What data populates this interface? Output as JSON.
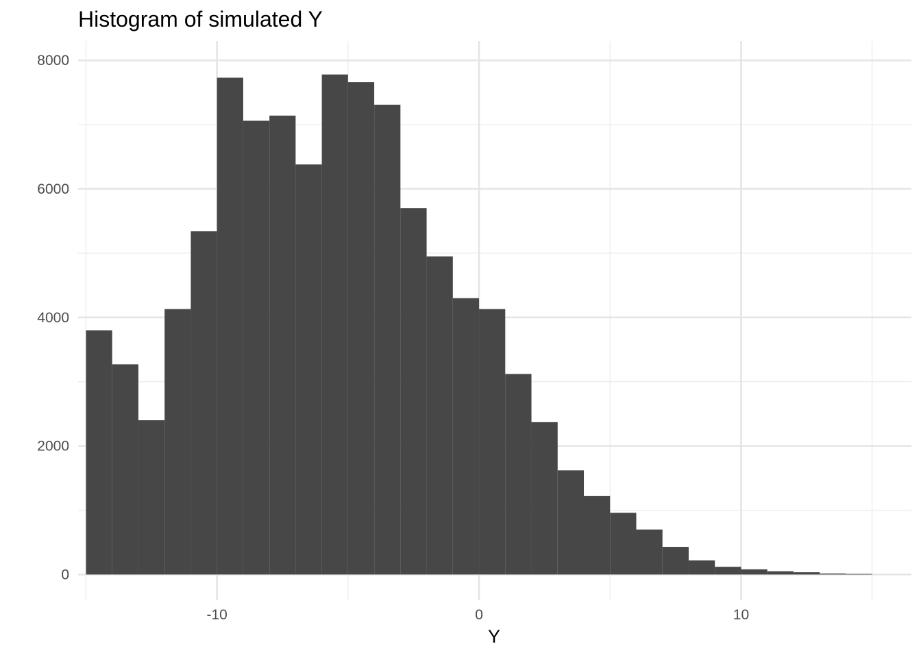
{
  "chart_data": {
    "type": "bar",
    "title": "Histogram of simulated Y",
    "xlabel": "Y",
    "ylabel": "",
    "bin_width": 1,
    "xlim": [
      -15.3,
      16.5
    ],
    "ylim": [
      -400,
      8300
    ],
    "x_ticks": [
      -10,
      0,
      10
    ],
    "x_tick_labels": [
      "-10",
      "0",
      "10"
    ],
    "x_minor_ticks": [
      -15,
      -5,
      5,
      15
    ],
    "y_ticks": [
      0,
      2000,
      4000,
      6000,
      8000
    ],
    "y_tick_labels": [
      "0",
      "2000",
      "4000",
      "6000",
      "8000"
    ],
    "y_minor_ticks": [
      1000,
      3000,
      5000,
      7000
    ],
    "grid": true,
    "legend": "none",
    "bars": [
      {
        "x0": -15,
        "x1": -14,
        "count": 3800
      },
      {
        "x0": -14,
        "x1": -13,
        "count": 3270
      },
      {
        "x0": -13,
        "x1": -12,
        "count": 2400
      },
      {
        "x0": -12,
        "x1": -11,
        "count": 4130
      },
      {
        "x0": -11,
        "x1": -10,
        "count": 5340
      },
      {
        "x0": -10,
        "x1": -9,
        "count": 7730
      },
      {
        "x0": -9,
        "x1": -8,
        "count": 7060
      },
      {
        "x0": -8,
        "x1": -7,
        "count": 7140
      },
      {
        "x0": -7,
        "x1": -6,
        "count": 6380
      },
      {
        "x0": -6,
        "x1": -5,
        "count": 7780
      },
      {
        "x0": -5,
        "x1": -4,
        "count": 7660
      },
      {
        "x0": -4,
        "x1": -3,
        "count": 7310
      },
      {
        "x0": -3,
        "x1": -2,
        "count": 5700
      },
      {
        "x0": -2,
        "x1": -1,
        "count": 4950
      },
      {
        "x0": -1,
        "x1": 0,
        "count": 4300
      },
      {
        "x0": 0,
        "x1": 1,
        "count": 4130
      },
      {
        "x0": 1,
        "x1": 2,
        "count": 3120
      },
      {
        "x0": 2,
        "x1": 3,
        "count": 2370
      },
      {
        "x0": 3,
        "x1": 4,
        "count": 1620
      },
      {
        "x0": 4,
        "x1": 5,
        "count": 1220
      },
      {
        "x0": 5,
        "x1": 6,
        "count": 960
      },
      {
        "x0": 6,
        "x1": 7,
        "count": 700
      },
      {
        "x0": 7,
        "x1": 8,
        "count": 430
      },
      {
        "x0": 8,
        "x1": 9,
        "count": 220
      },
      {
        "x0": 9,
        "x1": 10,
        "count": 120
      },
      {
        "x0": 10,
        "x1": 11,
        "count": 80
      },
      {
        "x0": 11,
        "x1": 12,
        "count": 50
      },
      {
        "x0": 12,
        "x1": 13,
        "count": 35
      },
      {
        "x0": 13,
        "x1": 14,
        "count": 15
      },
      {
        "x0": 14,
        "x1": 15,
        "count": 8
      }
    ],
    "colors": {
      "bar_fill": "#474747",
      "grid_major": "#e5e5e5",
      "grid_minor": "#ededed",
      "tick_text": "#4d4d4d",
      "title_text": "#000000"
    }
  }
}
